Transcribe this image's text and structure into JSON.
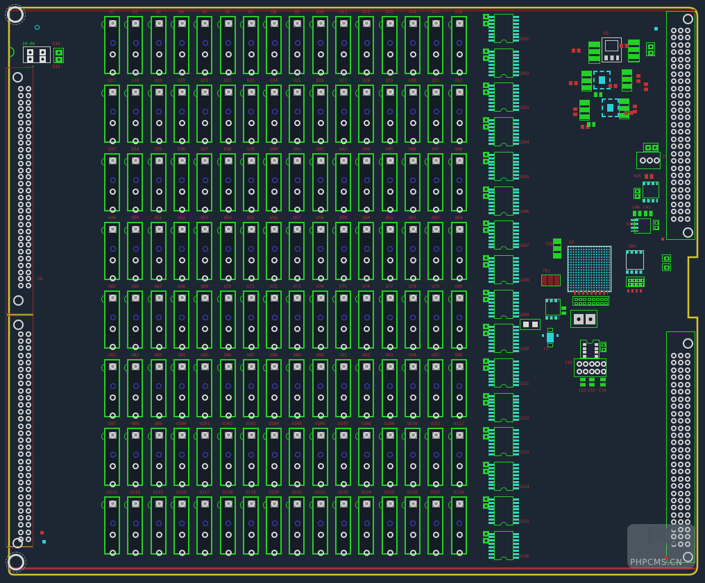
{
  "colors": {
    "background": "#1d2733",
    "board_outline_yellow": "#d6c42e",
    "silk_green": "#25d025",
    "refdes_red": "#c23232",
    "pad_white": "#dcdcdc",
    "pad_blue": "#4747d4",
    "pad_cyan": "#2ad0d8",
    "top_line_dark_red": "#6e2020",
    "bottom_line_red": "#a52f2f",
    "ic_pad_teal": "#3ad4b8"
  },
  "socket_grid": {
    "rows": 8,
    "cols": 16,
    "labels": [
      "U1",
      "U2",
      "U3",
      "U4",
      "U5",
      "U6",
      "U7",
      "U8",
      "U9",
      "U10",
      "U11",
      "U12",
      "U13",
      "U14",
      "U15",
      "U16",
      "U17",
      "U18",
      "U19",
      "U20",
      "U21",
      "U22",
      "U23",
      "U24",
      "U25",
      "U26",
      "U27",
      "U28",
      "U29",
      "U30",
      "U31",
      "U32",
      "U33",
      "U34",
      "U35",
      "U36",
      "U37",
      "U38",
      "U39",
      "U40",
      "U41",
      "U42",
      "U43",
      "U44",
      "U45",
      "U46",
      "U47",
      "U48",
      "U49",
      "U50",
      "U51",
      "U52",
      "U53",
      "U54",
      "U55",
      "U56",
      "U57",
      "U58",
      "U59",
      "U60",
      "U61",
      "U62",
      "U63",
      "U64",
      "U65",
      "U66",
      "U67",
      "U68",
      "U69",
      "U70",
      "U71",
      "U72",
      "U73",
      "U74",
      "U75",
      "U76",
      "U77",
      "U78",
      "U79",
      "U80",
      "U81",
      "U82",
      "U83",
      "U84",
      "U85",
      "U86",
      "U87",
      "U88",
      "U89",
      "U90",
      "U91",
      "U92",
      "U93",
      "U94",
      "U95",
      "U96",
      "U97",
      "U98",
      "U99",
      "U100",
      "U101",
      "U102",
      "U103",
      "U104",
      "U105",
      "U106",
      "U107",
      "U108",
      "U109",
      "U110",
      "U111",
      "U112",
      "U113",
      "U114",
      "U115",
      "U116",
      "U117",
      "U118",
      "U119",
      "U120",
      "U121",
      "U122",
      "U123",
      "U124",
      "U125",
      "U126",
      "U127",
      "U128"
    ]
  },
  "ic_column": {
    "count": 16,
    "labels": [
      "U201",
      "U202",
      "U203",
      "U204",
      "U205",
      "U206",
      "U207",
      "U208",
      "U209",
      "U210",
      "U211",
      "U212",
      "U213",
      "U214",
      "U215",
      "U216"
    ]
  },
  "connectors": {
    "left_upper_label": "J8"
  },
  "power_block": {
    "top": "24-06",
    "bottom": "- +",
    "d1": "D16",
    "d2": "D15"
  },
  "small_labels": {
    "dpak": "U5",
    "circ3": "J5",
    "r2mid": "R45",
    "soic_mid": "U9",
    "g2a": "C40",
    "g2b": "C41",
    "small_ic": "U10",
    "cap3_bga": "C50",
    "bga": "U2",
    "tr": "TR1",
    "soic_bga": "SW1",
    "xtal": "Y1",
    "hdr10": "J10",
    "trio": [
      "C52",
      "C53",
      "C54"
    ]
  },
  "watermark": {
    "logo": "PC",
    "site": "PHPCMS.CN"
  }
}
